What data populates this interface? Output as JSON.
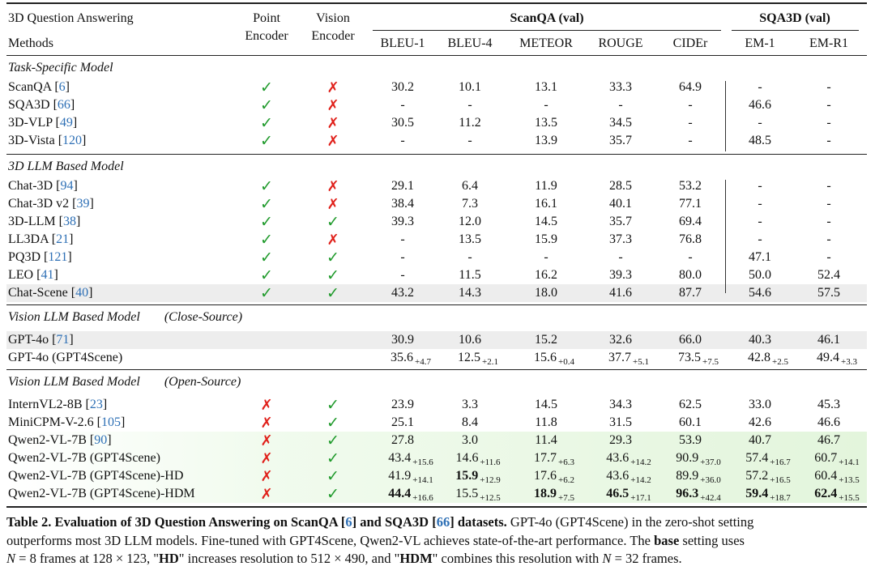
{
  "table": {
    "col_headers": {
      "methods_top": "3D Question Answering",
      "methods": "Methods",
      "point_encoder": "Point Encoder",
      "vision_encoder": "Vision Encoder",
      "scanqa_group": "ScanQA (val)",
      "sqa3d_group": "SQA3D (val)",
      "metrics": [
        "BLEU-1",
        "BLEU-4",
        "METEOR",
        "ROUGE",
        "CIDEr",
        "EM-1",
        "EM-R1"
      ]
    },
    "sections": [
      {
        "title": "Task-Specific Model",
        "title_suffix": "",
        "rows": [
          {
            "name": "ScanQA [",
            "ref": "6",
            "name_after": "]",
            "point": "✓",
            "vision": "✗",
            "bg": "none",
            "vals": [
              {
                "v": "30.2"
              },
              {
                "v": "10.1"
              },
              {
                "v": "13.1"
              },
              {
                "v": "33.3"
              },
              {
                "v": "64.9"
              },
              {
                "v": "-"
              },
              {
                "v": "-"
              }
            ]
          },
          {
            "name": "SQA3D [",
            "ref": "66",
            "name_after": "]",
            "point": "✓",
            "vision": "✗",
            "bg": "none",
            "vals": [
              {
                "v": "-"
              },
              {
                "v": "-"
              },
              {
                "v": "-"
              },
              {
                "v": "-"
              },
              {
                "v": "-"
              },
              {
                "v": "46.6"
              },
              {
                "v": "-"
              }
            ]
          },
          {
            "name": "3D-VLP [",
            "ref": "49",
            "name_after": "]",
            "point": "✓",
            "vision": "✗",
            "bg": "none",
            "vals": [
              {
                "v": "30.5"
              },
              {
                "v": "11.2"
              },
              {
                "v": "13.5"
              },
              {
                "v": "34.5"
              },
              {
                "v": "-"
              },
              {
                "v": "-"
              },
              {
                "v": "-"
              }
            ]
          },
          {
            "name": "3D-Vista [",
            "ref": "120",
            "name_after": "]",
            "point": "✓",
            "vision": "✗",
            "bg": "none",
            "vals": [
              {
                "v": "-"
              },
              {
                "v": "-"
              },
              {
                "v": "13.9"
              },
              {
                "v": "35.7"
              },
              {
                "v": "-"
              },
              {
                "v": "48.5"
              },
              {
                "v": "-"
              }
            ]
          }
        ]
      },
      {
        "title": "3D LLM Based Model",
        "title_suffix": "",
        "rows": [
          {
            "name": "Chat-3D [",
            "ref": "94",
            "name_after": "]",
            "point": "✓",
            "vision": "✗",
            "bg": "none",
            "vals": [
              {
                "v": "29.1"
              },
              {
                "v": "6.4"
              },
              {
                "v": "11.9"
              },
              {
                "v": "28.5"
              },
              {
                "v": "53.2"
              },
              {
                "v": "-"
              },
              {
                "v": "-"
              }
            ]
          },
          {
            "name": "Chat-3D v2 [",
            "ref": "39",
            "name_after": "]",
            "point": "✓",
            "vision": "✗",
            "bg": "none",
            "vals": [
              {
                "v": "38.4"
              },
              {
                "v": "7.3"
              },
              {
                "v": "16.1"
              },
              {
                "v": "40.1"
              },
              {
                "v": "77.1"
              },
              {
                "v": "-"
              },
              {
                "v": "-"
              }
            ]
          },
          {
            "name": "3D-LLM [",
            "ref": "38",
            "name_after": "]",
            "point": "✓",
            "vision": "✓",
            "bg": "none",
            "vals": [
              {
                "v": "39.3"
              },
              {
                "v": "12.0"
              },
              {
                "v": "14.5"
              },
              {
                "v": "35.7"
              },
              {
                "v": "69.4"
              },
              {
                "v": "-"
              },
              {
                "v": "-"
              }
            ]
          },
          {
            "name": "LL3DA [",
            "ref": "21",
            "name_after": "]",
            "point": "✓",
            "vision": "✗",
            "bg": "none",
            "vals": [
              {
                "v": "-"
              },
              {
                "v": "13.5"
              },
              {
                "v": "15.9"
              },
              {
                "v": "37.3"
              },
              {
                "v": "76.8"
              },
              {
                "v": "-"
              },
              {
                "v": "-"
              }
            ]
          },
          {
            "name": "PQ3D [",
            "ref": "121",
            "name_after": "]",
            "point": "✓",
            "vision": "✓",
            "bg": "none",
            "vals": [
              {
                "v": "-"
              },
              {
                "v": "-"
              },
              {
                "v": "-"
              },
              {
                "v": "-"
              },
              {
                "v": "-"
              },
              {
                "v": "47.1"
              },
              {
                "v": "-"
              }
            ]
          },
          {
            "name": "LEO [",
            "ref": "41",
            "name_after": "]",
            "point": "✓",
            "vision": "✓",
            "bg": "none",
            "vals": [
              {
                "v": "-"
              },
              {
                "v": "11.5"
              },
              {
                "v": "16.2"
              },
              {
                "v": "39.3"
              },
              {
                "v": "80.0"
              },
              {
                "v": "50.0"
              },
              {
                "v": "52.4"
              }
            ]
          },
          {
            "name": "Chat-Scene [",
            "ref": "40",
            "name_after": "]",
            "point": "✓",
            "vision": "✓",
            "bg": "gray",
            "vals": [
              {
                "v": "43.2"
              },
              {
                "v": "14.3"
              },
              {
                "v": "18.0"
              },
              {
                "v": "41.6"
              },
              {
                "v": "87.7"
              },
              {
                "v": "54.6"
              },
              {
                "v": "57.5"
              }
            ]
          }
        ]
      },
      {
        "title": "Vision LLM Based Model",
        "title_suffix": "(Close-Source)",
        "rows": [
          {
            "name": "GPT-4o [",
            "ref": "71",
            "name_after": "]",
            "point": "",
            "vision": "",
            "bg": "gray",
            "vals": [
              {
                "v": "30.9"
              },
              {
                "v": "10.6"
              },
              {
                "v": "15.2"
              },
              {
                "v": "32.6"
              },
              {
                "v": "66.0"
              },
              {
                "v": "40.3"
              },
              {
                "v": "46.1"
              }
            ]
          },
          {
            "name": "GPT-4o (GPT4Scene)",
            "ref": "",
            "name_after": "",
            "point": "",
            "vision": "",
            "bg": "none",
            "vals": [
              {
                "v": "35.6",
                "d": "+4.7"
              },
              {
                "v": "12.5",
                "d": "+2.1"
              },
              {
                "v": "15.6",
                "d": "+0.4"
              },
              {
                "v": "37.7",
                "d": "+5.1"
              },
              {
                "v": "73.5",
                "d": "+7.5"
              },
              {
                "v": "42.8",
                "d": "+2.5"
              },
              {
                "v": "49.4",
                "d": "+3.3"
              }
            ]
          }
        ]
      },
      {
        "title": "Vision LLM Based Model",
        "title_suffix": "(Open-Source)",
        "rows": [
          {
            "name": "InternVL2-8B [",
            "ref": "23",
            "name_after": "]",
            "point": "✗",
            "vision": "✓",
            "bg": "none",
            "vals": [
              {
                "v": "23.9"
              },
              {
                "v": "3.3"
              },
              {
                "v": "14.5"
              },
              {
                "v": "34.3"
              },
              {
                "v": "62.5"
              },
              {
                "v": "33.0"
              },
              {
                "v": "45.3"
              }
            ]
          },
          {
            "name": "MiniCPM-V-2.6 [",
            "ref": "105",
            "name_after": "]",
            "point": "✗",
            "vision": "✓",
            "bg": "none",
            "vals": [
              {
                "v": "25.1"
              },
              {
                "v": "8.4"
              },
              {
                "v": "11.8"
              },
              {
                "v": "31.5"
              },
              {
                "v": "60.1"
              },
              {
                "v": "42.6"
              },
              {
                "v": "46.6"
              }
            ]
          },
          {
            "name": "Qwen2-VL-7B [",
            "ref": "90",
            "name_after": "]",
            "point": "✗",
            "vision": "✓",
            "bg": "green",
            "vals": [
              {
                "v": "27.8"
              },
              {
                "v": "3.0"
              },
              {
                "v": "11.4"
              },
              {
                "v": "29.3"
              },
              {
                "v": "53.9"
              },
              {
                "v": "40.7"
              },
              {
                "v": "46.7"
              }
            ]
          },
          {
            "name": "Qwen2-VL-7B (GPT4Scene)",
            "ref": "",
            "name_after": "",
            "point": "✗",
            "vision": "✓",
            "bg": "green",
            "vals": [
              {
                "v": "43.4",
                "d": "+15.6"
              },
              {
                "v": "14.6",
                "d": "+11.6"
              },
              {
                "v": "17.7",
                "d": "+6.3"
              },
              {
                "v": "43.6",
                "d": "+14.2"
              },
              {
                "v": "90.9",
                "d": "+37.0"
              },
              {
                "v": "57.4",
                "d": "+16.7"
              },
              {
                "v": "60.7",
                "d": "+14.1"
              }
            ]
          },
          {
            "name": "Qwen2-VL-7B (GPT4Scene)-HD",
            "ref": "",
            "name_after": "",
            "point": "✗",
            "vision": "✓",
            "bg": "green",
            "vals": [
              {
                "v": "41.9",
                "d": "+14.1"
              },
              {
                "v": "15.9",
                "d": "+12.9",
                "b": true
              },
              {
                "v": "17.6",
                "d": "+6.2"
              },
              {
                "v": "43.6",
                "d": "+14.2"
              },
              {
                "v": "89.9",
                "d": "+36.0"
              },
              {
                "v": "57.2",
                "d": "+16.5"
              },
              {
                "v": "60.4",
                "d": "+13.5"
              }
            ]
          },
          {
            "name": "Qwen2-VL-7B (GPT4Scene)-HDM",
            "ref": "",
            "name_after": "",
            "point": "✗",
            "vision": "✓",
            "bg": "green",
            "vals": [
              {
                "v": "44.4",
                "d": "+16.6",
                "b": true
              },
              {
                "v": "15.5",
                "d": "+12.5"
              },
              {
                "v": "18.9",
                "d": "+7.5",
                "b": true
              },
              {
                "v": "46.5",
                "d": "+17.1",
                "b": true
              },
              {
                "v": "96.3",
                "d": "+42.4",
                "b": true
              },
              {
                "v": "59.4",
                "d": "+18.7",
                "b": true
              },
              {
                "v": "62.4",
                "d": "+15.5",
                "b": true
              }
            ]
          }
        ]
      }
    ]
  },
  "caption": {
    "label": "Table 2.",
    "title_a": "Evaluation of 3D Question Answering on ScanQA [",
    "title_ref1": "6",
    "title_b": "] and SQA3D [",
    "title_ref2": "66",
    "title_c": "] datasets.",
    "line1_rest": "GPT-4o (GPT4Scene) in the zero-shot setting",
    "line2_a": "outperforms most 3D LLM models. Fine-tuned with GPT4Scene, Qwen2-VL achieves state-of-the-art performance. The",
    "line2_bold": "base",
    "line2_b": "setting uses",
    "line3_n1": "N",
    "line3_a": "= 8 frames at 128 × 123, \"",
    "line3_hd": "HD",
    "line3_b": "\" increases resolution to 512 × 490, and \"",
    "line3_hdm": "HDM",
    "line3_c": "\" combines this resolution with",
    "line3_n2": "N",
    "line3_d": "= 32 frames."
  }
}
